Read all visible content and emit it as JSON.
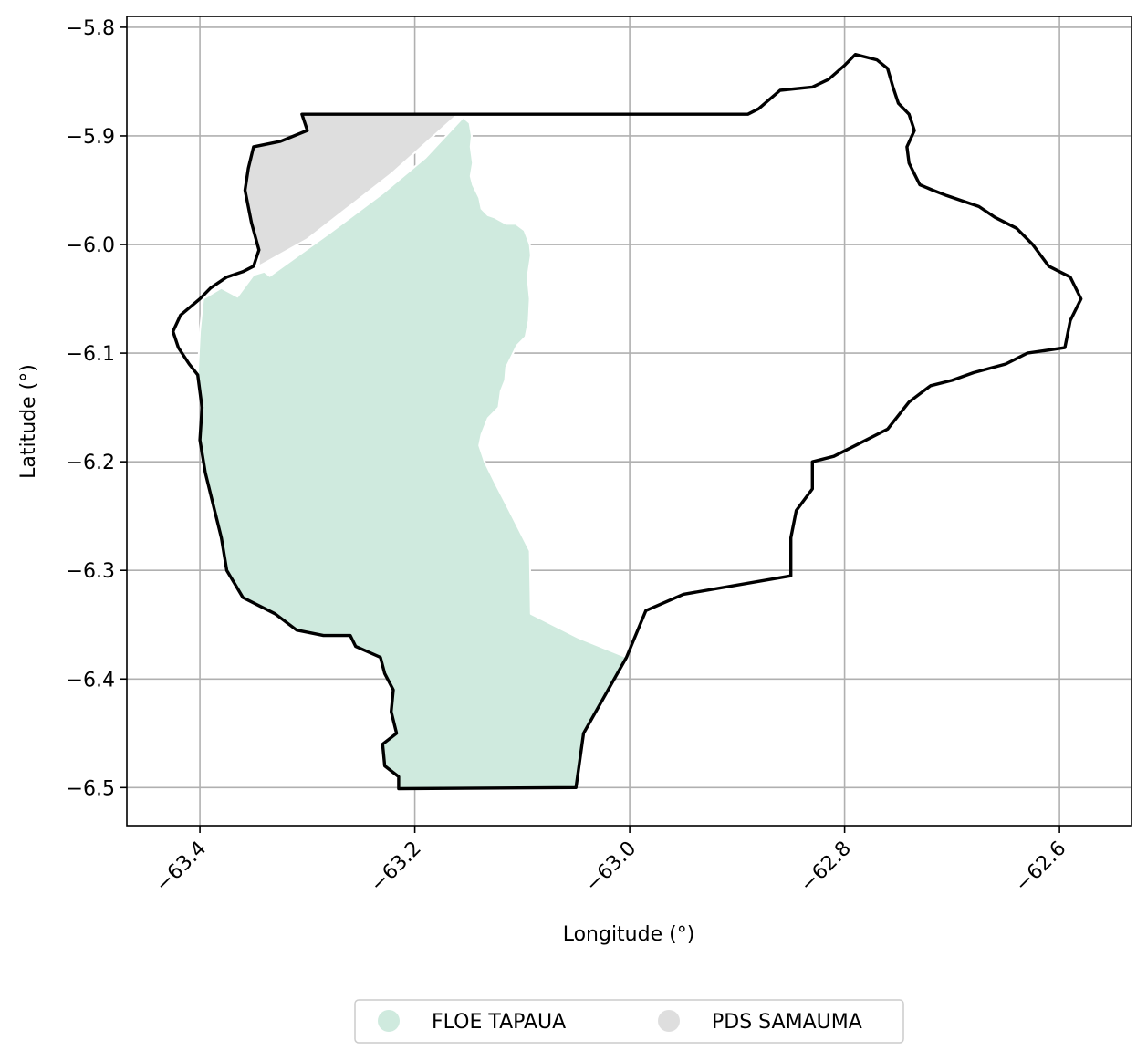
{
  "chart_data": {
    "type": "map",
    "xlabel": "Longitude (°)",
    "ylabel": "Latitude (°)",
    "xlim": [
      -63.468,
      -62.533
    ],
    "ylim": [
      -6.535,
      -5.79
    ],
    "xticks": [
      -63.4,
      -63.2,
      -63.0,
      -62.8,
      -62.6
    ],
    "yticks": [
      -5.8,
      -5.9,
      -6.0,
      -6.1,
      -6.2,
      -6.3,
      -6.4,
      -6.5
    ],
    "xtick_labels": [
      "−63.4",
      "−63.2",
      "−63.0",
      "−62.8",
      "−62.6"
    ],
    "ytick_labels": [
      "−5.8",
      "−5.9",
      "−6.0",
      "−6.1",
      "−6.2",
      "−6.3",
      "−6.4",
      "−6.5"
    ],
    "grid": true,
    "legend_position": "bottom-center",
    "colors": {
      "floe": "#cfeade",
      "pds": "#dedede",
      "boundary": "#000000",
      "grid": "#b0b0b0"
    },
    "series": [
      {
        "name": "FLOE TAPAUA",
        "role": "fill",
        "color": "#cfeade",
        "coords": [
          [
            -63.155,
            -5.883
          ],
          [
            -63.149,
            -5.888
          ],
          [
            -63.147,
            -5.9
          ],
          [
            -63.148,
            -5.91
          ],
          [
            -63.146,
            -5.925
          ],
          [
            -63.148,
            -5.937
          ],
          [
            -63.146,
            -5.945
          ],
          [
            -63.14,
            -5.957
          ],
          [
            -63.138,
            -5.967
          ],
          [
            -63.132,
            -5.973
          ],
          [
            -63.126,
            -5.975
          ],
          [
            -63.115,
            -5.981
          ],
          [
            -63.106,
            -5.981
          ],
          [
            -63.098,
            -5.987
          ],
          [
            -63.093,
            -6.0
          ],
          [
            -63.092,
            -6.01
          ],
          [
            -63.095,
            -6.03
          ],
          [
            -63.093,
            -6.05
          ],
          [
            -63.094,
            -6.07
          ],
          [
            -63.097,
            -6.085
          ],
          [
            -63.105,
            -6.093
          ],
          [
            -63.11,
            -6.103
          ],
          [
            -63.115,
            -6.113
          ],
          [
            -63.116,
            -6.125
          ],
          [
            -63.12,
            -6.135
          ],
          [
            -63.122,
            -6.15
          ],
          [
            -63.132,
            -6.16
          ],
          [
            -63.138,
            -6.175
          ],
          [
            -63.14,
            -6.185
          ],
          [
            -63.135,
            -6.2
          ],
          [
            -63.125,
            -6.22
          ],
          [
            -63.112,
            -6.245
          ],
          [
            -63.093,
            -6.282
          ],
          [
            -63.092,
            -6.34
          ],
          [
            -63.072,
            -6.35
          ],
          [
            -63.048,
            -6.362
          ],
          [
            -63.003,
            -6.38
          ],
          [
            -63.043,
            -6.45
          ],
          [
            -63.05,
            -6.5
          ],
          [
            -63.215,
            -6.501
          ],
          [
            -63.215,
            -6.49
          ],
          [
            -63.228,
            -6.48
          ],
          [
            -63.23,
            -6.46
          ],
          [
            -63.217,
            -6.45
          ],
          [
            -63.222,
            -6.43
          ],
          [
            -63.22,
            -6.41
          ],
          [
            -63.228,
            -6.395
          ],
          [
            -63.232,
            -6.38
          ],
          [
            -63.255,
            -6.37
          ],
          [
            -63.26,
            -6.36
          ],
          [
            -63.285,
            -6.36
          ],
          [
            -63.31,
            -6.355
          ],
          [
            -63.33,
            -6.34
          ],
          [
            -63.36,
            -6.325
          ],
          [
            -63.375,
            -6.3
          ],
          [
            -63.38,
            -6.27
          ],
          [
            -63.385,
            -6.25
          ],
          [
            -63.395,
            -6.21
          ],
          [
            -63.4,
            -6.18
          ],
          [
            -63.398,
            -6.15
          ],
          [
            -63.402,
            -6.12
          ],
          [
            -63.4,
            -6.08
          ],
          [
            -63.397,
            -6.05
          ],
          [
            -63.38,
            -6.04
          ],
          [
            -63.365,
            -6.048
          ],
          [
            -63.35,
            -6.028
          ],
          [
            -63.34,
            -6.025
          ],
          [
            -63.335,
            -6.029
          ],
          [
            -63.28,
            -5.99
          ],
          [
            -63.23,
            -5.953
          ],
          [
            -63.19,
            -5.92
          ],
          [
            -63.155,
            -5.883
          ]
        ]
      },
      {
        "name": "PDS SAMAUMA",
        "role": "fill",
        "color": "#dedede",
        "coords": [
          [
            -63.305,
            -5.88
          ],
          [
            -63.16,
            -5.88
          ],
          [
            -63.222,
            -5.935
          ],
          [
            -63.3,
            -5.995
          ],
          [
            -63.345,
            -6.02
          ],
          [
            -63.345,
            -6.005
          ],
          [
            -63.352,
            -5.98
          ],
          [
            -63.358,
            -5.95
          ],
          [
            -63.355,
            -5.93
          ],
          [
            -63.35,
            -5.91
          ],
          [
            -63.325,
            -5.905
          ],
          [
            -63.3,
            -5.895
          ],
          [
            -63.305,
            -5.88
          ]
        ]
      },
      {
        "name": "Boundary",
        "role": "outline",
        "color": "#000000",
        "coords": [
          [
            -63.305,
            -5.88
          ],
          [
            -62.89,
            -5.88
          ],
          [
            -62.88,
            -5.875
          ],
          [
            -62.86,
            -5.858
          ],
          [
            -62.83,
            -5.855
          ],
          [
            -62.815,
            -5.848
          ],
          [
            -62.8,
            -5.835
          ],
          [
            -62.79,
            -5.825
          ],
          [
            -62.77,
            -5.83
          ],
          [
            -62.76,
            -5.838
          ],
          [
            -62.755,
            -5.855
          ],
          [
            -62.75,
            -5.87
          ],
          [
            -62.74,
            -5.88
          ],
          [
            -62.735,
            -5.895
          ],
          [
            -62.742,
            -5.91
          ],
          [
            -62.74,
            -5.925
          ],
          [
            -62.73,
            -5.945
          ],
          [
            -62.718,
            -5.95
          ],
          [
            -62.705,
            -5.955
          ],
          [
            -62.69,
            -5.96
          ],
          [
            -62.675,
            -5.965
          ],
          [
            -62.66,
            -5.975
          ],
          [
            -62.64,
            -5.985
          ],
          [
            -62.625,
            -6.0
          ],
          [
            -62.61,
            -6.02
          ],
          [
            -62.59,
            -6.03
          ],
          [
            -62.58,
            -6.05
          ],
          [
            -62.59,
            -6.07
          ],
          [
            -62.595,
            -6.095
          ],
          [
            -62.63,
            -6.1
          ],
          [
            -62.65,
            -6.11
          ],
          [
            -62.68,
            -6.118
          ],
          [
            -62.7,
            -6.125
          ],
          [
            -62.72,
            -6.13
          ],
          [
            -62.74,
            -6.145
          ],
          [
            -62.76,
            -6.17
          ],
          [
            -62.79,
            -6.185
          ],
          [
            -62.81,
            -6.195
          ],
          [
            -62.83,
            -6.2
          ],
          [
            -62.83,
            -6.225
          ],
          [
            -62.845,
            -6.245
          ],
          [
            -62.85,
            -6.27
          ],
          [
            -62.85,
            -6.305
          ],
          [
            -62.95,
            -6.322
          ],
          [
            -62.985,
            -6.337
          ],
          [
            -63.003,
            -6.38
          ],
          [
            -63.043,
            -6.45
          ],
          [
            -63.05,
            -6.5
          ],
          [
            -63.215,
            -6.501
          ],
          [
            -63.215,
            -6.49
          ],
          [
            -63.228,
            -6.48
          ],
          [
            -63.23,
            -6.46
          ],
          [
            -63.217,
            -6.45
          ],
          [
            -63.222,
            -6.43
          ],
          [
            -63.22,
            -6.41
          ],
          [
            -63.228,
            -6.395
          ],
          [
            -63.232,
            -6.38
          ],
          [
            -63.255,
            -6.37
          ],
          [
            -63.26,
            -6.36
          ],
          [
            -63.285,
            -6.36
          ],
          [
            -63.31,
            -6.355
          ],
          [
            -63.33,
            -6.34
          ],
          [
            -63.36,
            -6.325
          ],
          [
            -63.375,
            -6.3
          ],
          [
            -63.38,
            -6.27
          ],
          [
            -63.385,
            -6.25
          ],
          [
            -63.395,
            -6.21
          ],
          [
            -63.4,
            -6.18
          ],
          [
            -63.398,
            -6.15
          ],
          [
            -63.402,
            -6.12
          ],
          [
            -63.41,
            -6.11
          ],
          [
            -63.42,
            -6.095
          ],
          [
            -63.425,
            -6.08
          ],
          [
            -63.418,
            -6.065
          ],
          [
            -63.4,
            -6.05
          ],
          [
            -63.39,
            -6.04
          ],
          [
            -63.375,
            -6.03
          ],
          [
            -63.36,
            -6.025
          ],
          [
            -63.35,
            -6.02
          ],
          [
            -63.345,
            -6.005
          ],
          [
            -63.352,
            -5.98
          ],
          [
            -63.358,
            -5.95
          ],
          [
            -63.355,
            -5.93
          ],
          [
            -63.35,
            -5.91
          ],
          [
            -63.325,
            -5.905
          ],
          [
            -63.3,
            -5.895
          ],
          [
            -63.305,
            -5.88
          ]
        ]
      }
    ]
  },
  "legend": {
    "items": [
      {
        "label": "FLOE TAPAUA",
        "color": "#cfeade"
      },
      {
        "label": "PDS SAMAUMA",
        "color": "#dedede"
      }
    ]
  }
}
